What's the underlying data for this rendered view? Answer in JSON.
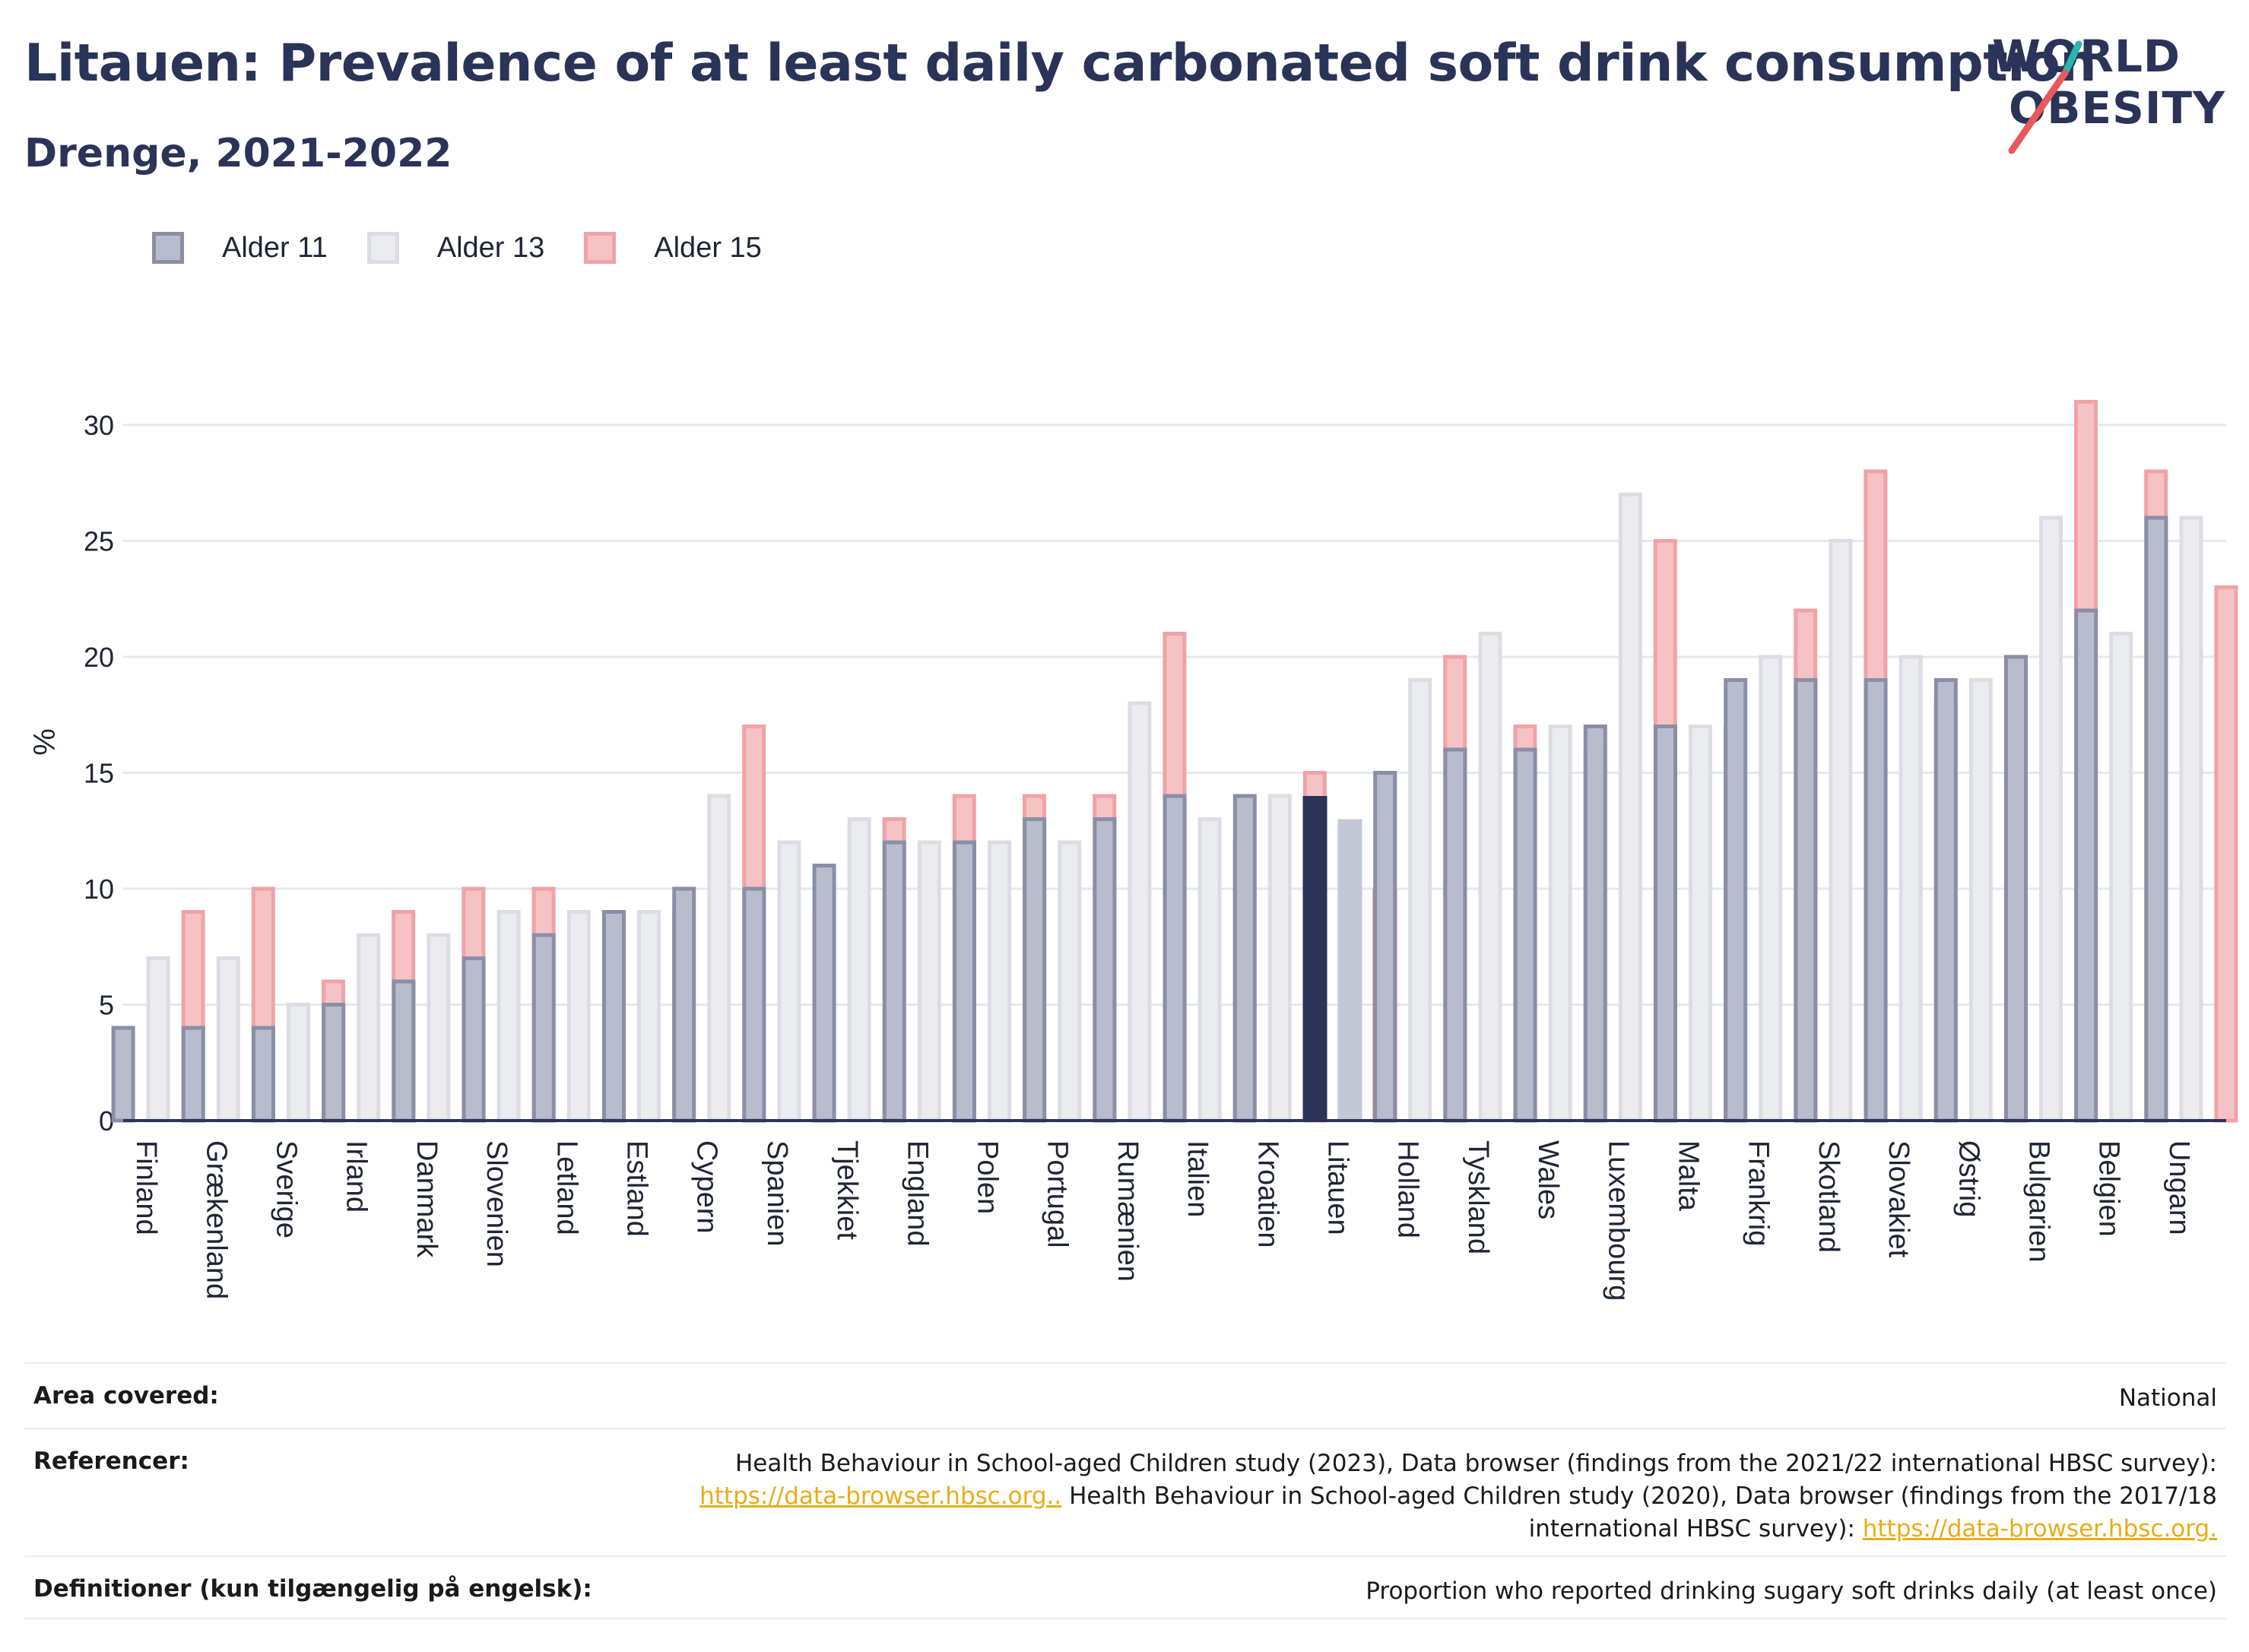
{
  "title": "Litauen: Prevalence of at least daily carbonated soft drink consumption",
  "subtitle": "Drenge, 2021-2022",
  "logo": {
    "line1": "WORLD",
    "line2": "OBESITY"
  },
  "colors": {
    "text": "#2a3358",
    "age11_fill": "#b9bccd",
    "age11_stroke": "#8a8fa8",
    "age13_fill": "#ebecf0",
    "age13_stroke": "#dcdde4",
    "age15_fill": "#f6c3c5",
    "age15_stroke": "#f1a2a6",
    "highlight_age11": "#2a3358",
    "highlight_age13": "#c4c7d6",
    "highlight_age15": "#e8585c",
    "grid": "#e6e8ec",
    "link": "#e8ad16"
  },
  "chart_data": {
    "type": "bar",
    "ylabel": "%",
    "ylim": [
      0,
      33
    ],
    "yticks": [
      0,
      5,
      10,
      15,
      20,
      25,
      30
    ],
    "grid": true,
    "legend_position": "top-left",
    "highlight_category": "Litauen",
    "categories": [
      "Finland",
      "Grækenland",
      "Sverige",
      "Irland",
      "Danmark",
      "Slovenien",
      "Letland",
      "Estland",
      "Cypern",
      "Spanien",
      "Tjekkiet",
      "England",
      "Polen",
      "Portugal",
      "Rumænien",
      "Italien",
      "Kroatien",
      "Litauen",
      "Holland",
      "Tyskland",
      "Wales",
      "Luxembourg",
      "Malta",
      "Frankrig",
      "Skotland",
      "Slovakiet",
      "Østrig",
      "Bulgarien",
      "Belgien",
      "Ungarn"
    ],
    "series": [
      {
        "name": "Alder 11",
        "values": [
          4,
          4,
          4,
          5,
          6,
          7,
          8,
          9,
          10,
          10,
          11,
          12,
          12,
          13,
          13,
          14,
          14,
          14,
          15,
          16,
          16,
          17,
          17,
          19,
          19,
          19,
          19,
          20,
          22,
          26
        ]
      },
      {
        "name": "Alder 13",
        "values": [
          7,
          7,
          5,
          8,
          8,
          9,
          9,
          9,
          14,
          12,
          13,
          12,
          12,
          12,
          18,
          13,
          14,
          13,
          19,
          21,
          17,
          27,
          17,
          20,
          25,
          20,
          19,
          26,
          21,
          26
        ]
      },
      {
        "name": "Alder 15",
        "values": [
          9,
          10,
          6,
          9,
          10,
          10,
          9,
          9,
          17,
          9,
          13,
          14,
          14,
          14,
          21,
          12,
          15,
          10,
          20,
          17,
          16,
          25,
          17,
          22,
          28,
          18,
          20,
          31,
          28,
          23
        ]
      }
    ]
  },
  "info": {
    "area_key": "Area covered:",
    "area_val": "National",
    "ref_key": "Referencer:",
    "ref_text1": "Health Behaviour in School-aged Children study (2023), Data browser (findings from the 2021/22 international HBSC survey):",
    "ref_link1": "https://data-browser.hbsc.org..",
    "ref_text2": " Health Behaviour in School-aged Children study (2020), Data browser (findings from the 2017/18",
    "ref_text3": "international HBSC survey): ",
    "ref_link2": "https://data-browser.hbsc.org.",
    "def_key": "Definitioner (kun tilgængelig på engelsk):",
    "def_val": "Proportion who reported drinking sugary soft drinks daily (at least once)"
  }
}
